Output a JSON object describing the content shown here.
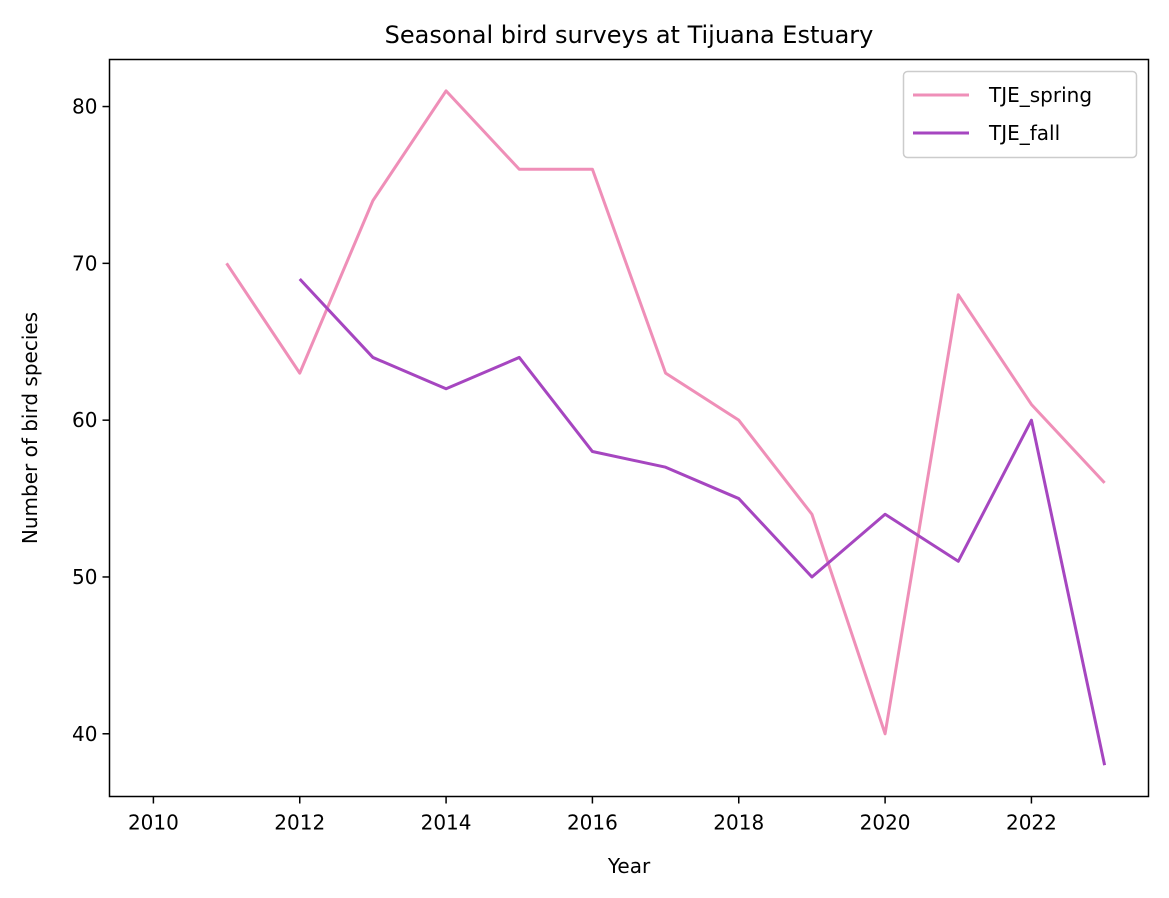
{
  "chart_data": {
    "type": "line",
    "title": "Seasonal bird surveys at Tijuana Estuary",
    "xlabel": "Year",
    "ylabel": "Number of bird species",
    "xlim": [
      2009.4,
      2023.6
    ],
    "ylim": [
      36,
      83
    ],
    "xticks": [
      2010,
      2012,
      2014,
      2016,
      2018,
      2020,
      2022
    ],
    "yticks": [
      40,
      50,
      60,
      70,
      80
    ],
    "grid": false,
    "legend_position": "top-right",
    "series": [
      {
        "name": "TJE_spring",
        "color": "#ef8fb8",
        "x": [
          2011,
          2012,
          2013,
          2014,
          2015,
          2016,
          2017,
          2018,
          2019,
          2020,
          2021,
          2022,
          2023
        ],
        "y": [
          70,
          63,
          74,
          81,
          76,
          76,
          63,
          60,
          54,
          40,
          68,
          61,
          56
        ]
      },
      {
        "name": "TJE_fall",
        "color": "#a646c0",
        "x": [
          2012,
          2013,
          2014,
          2015,
          2016,
          2017,
          2018,
          2019,
          2020,
          2021,
          2022,
          2023
        ],
        "y": [
          69,
          64,
          62,
          64,
          58,
          57,
          55,
          50,
          54,
          51,
          60,
          38
        ]
      }
    ]
  }
}
